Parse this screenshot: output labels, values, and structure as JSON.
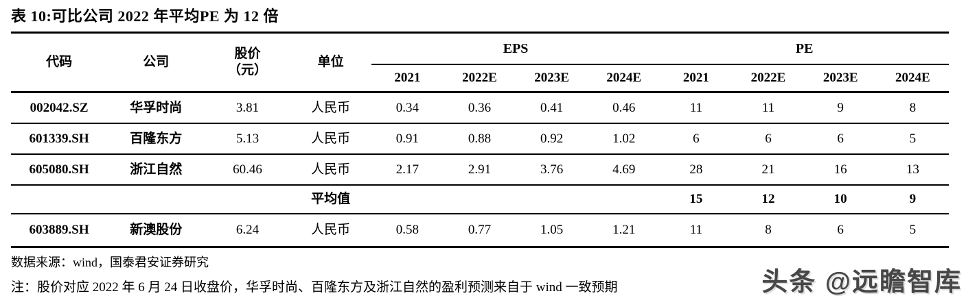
{
  "title": "表 10:可比公司 2022 年平均PE 为 12 倍",
  "table": {
    "headers": {
      "code": "代码",
      "company": "公司",
      "price_line1": "股价",
      "price_line2": "（元）",
      "unit": "单位",
      "eps_group": "EPS",
      "pe_group": "PE",
      "eps_years": [
        "2021",
        "2022E",
        "2023E",
        "2024E"
      ],
      "pe_years": [
        "2021",
        "2022E",
        "2023E",
        "2024E"
      ]
    },
    "rows": [
      [
        "002042.SZ",
        "华孚时尚",
        "3.81",
        "人民币",
        "0.34",
        "0.36",
        "0.41",
        "0.46",
        "11",
        "11",
        "9",
        "8"
      ],
      [
        "601339.SH",
        "百隆东方",
        "5.13",
        "人民币",
        "0.91",
        "0.88",
        "0.92",
        "1.02",
        "6",
        "6",
        "6",
        "5"
      ],
      [
        "605080.SH",
        "浙江自然",
        "60.46",
        "人民币",
        "2.17",
        "2.91",
        "3.76",
        "4.69",
        "28",
        "21",
        "16",
        "13"
      ],
      [
        "",
        "",
        "",
        "平均值",
        "",
        "",
        "",
        "",
        "15",
        "12",
        "10",
        "9"
      ],
      [
        "603889.SH",
        "新澳股份",
        "6.24",
        "人民币",
        "0.58",
        "0.77",
        "1.05",
        "1.21",
        "11",
        "8",
        "6",
        "5"
      ]
    ]
  },
  "footer": {
    "source": "数据来源：wind，国泰君安证券研究",
    "note": "注：股价对应 2022 年 6 月 24 日收盘价，华孚时尚、百隆东方及浙江自然的盈利预测来自于 wind 一致预期"
  },
  "watermark": "头条 @远瞻智库",
  "colors": {
    "text": "#000000",
    "border": "#000000",
    "watermark_gray": "#474747",
    "background": "#ffffff"
  }
}
